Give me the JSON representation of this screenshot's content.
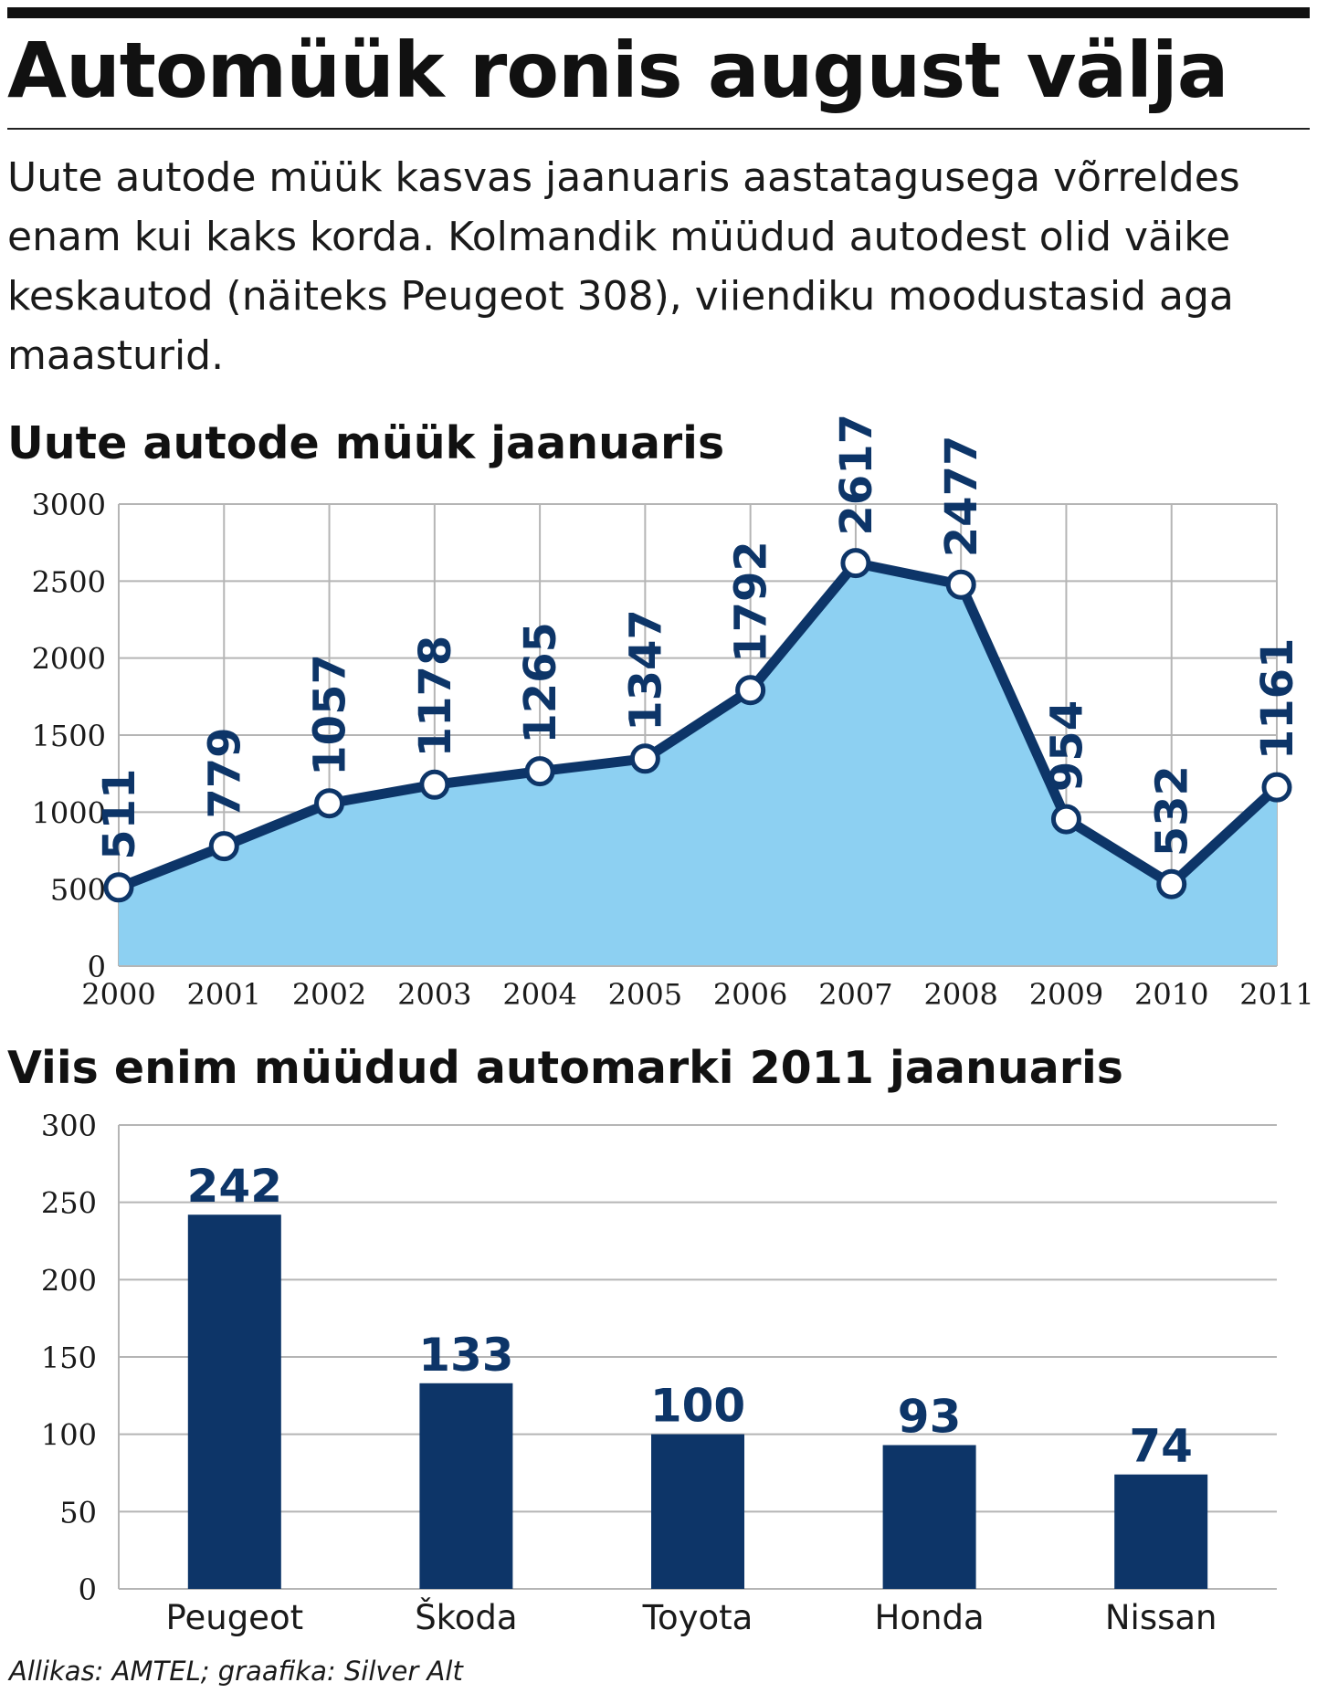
{
  "headline": "Automüük ronis august välja",
  "intro": "Uute autode müük kasvas jaanuaris aastatagusega võrreldes enam kui kaks korda. Kolmandik müüdud autodest olid väike keskautod (näiteks Peugeot 308), viiendiku moodustasid aga maasturid.",
  "source": "Allikas: AMTEL; graafika: Silver Alt",
  "colors": {
    "navy": "#0d3568",
    "fill": "#8dd0f2",
    "grid": "#b5b5b5",
    "text": "#1a1a1a"
  },
  "chart_data": [
    {
      "type": "area",
      "title": "Uute autode müük jaanuaris",
      "x": [
        "2000",
        "2001",
        "2002",
        "2003",
        "2004",
        "2005",
        "2006",
        "2007",
        "2008",
        "2009",
        "2010",
        "2011"
      ],
      "values": [
        511,
        779,
        1057,
        1178,
        1265,
        1347,
        1792,
        2617,
        2477,
        954,
        532,
        1161
      ],
      "ylim": [
        0,
        3000
      ],
      "yticks": [
        0,
        500,
        1000,
        1500,
        2000,
        2500,
        3000
      ],
      "xlabel": "",
      "ylabel": "",
      "grid": true,
      "legend": "none"
    },
    {
      "type": "bar",
      "title": "Viis enim müüdud automarki 2011 jaanuaris",
      "categories": [
        "Peugeot",
        "Škoda",
        "Toyota",
        "Honda",
        "Nissan"
      ],
      "values": [
        242,
        133,
        100,
        93,
        74
      ],
      "ylim": [
        0,
        300
      ],
      "yticks": [
        0,
        50,
        100,
        150,
        200,
        250,
        300
      ],
      "xlabel": "",
      "ylabel": "",
      "grid": true,
      "legend": "none"
    }
  ]
}
